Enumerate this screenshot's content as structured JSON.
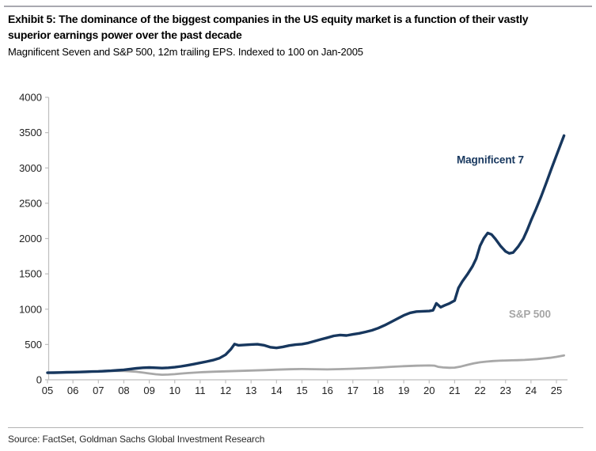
{
  "header": {
    "title_line1": "Exhibit 5: The dominance of the biggest companies in the US equity market is a function of their vastly",
    "title_line2": "superior earnings power over the past decade",
    "subtitle": "Magnificent Seven and S&P 500, 12m trailing EPS. Indexed to 100 on Jan-2005"
  },
  "footer": {
    "source": "Source: FactSet, Goldman Sachs Global Investment Research"
  },
  "colors": {
    "navy": "#17375E",
    "gray_line": "#A8A8A8",
    "axis": "#BFBFBF",
    "tick_label": "#212121"
  },
  "chart_data": {
    "type": "line",
    "title": "Magnificent Seven and S&P 500, 12m trailing EPS. Indexed to 100 on Jan-2005",
    "xlabel": "",
    "ylabel": "",
    "x_range": [
      2005,
      2025.4
    ],
    "ylim": [
      0,
      4000
    ],
    "grid": false,
    "legend_position": "inline-annotations",
    "x_tick_years": [
      2005,
      2006,
      2007,
      2008,
      2009,
      2010,
      2011,
      2012,
      2013,
      2014,
      2015,
      2016,
      2017,
      2018,
      2019,
      2020,
      2021,
      2022,
      2023,
      2024,
      2025
    ],
    "x_tick_labels": [
      "05",
      "06",
      "07",
      "08",
      "09",
      "10",
      "11",
      "12",
      "13",
      "14",
      "15",
      "16",
      "17",
      "18",
      "19",
      "20",
      "21",
      "22",
      "23",
      "24",
      "25"
    ],
    "y_tick_values": [
      0,
      500,
      1000,
      1500,
      2000,
      2500,
      3000,
      3500,
      4000
    ],
    "y_tick_labels": [
      "0",
      "500",
      "1000",
      "1500",
      "2000",
      "2500",
      "3000",
      "3500",
      "4000"
    ],
    "series": [
      {
        "name": "S&P 500",
        "color": "#A8A8A8",
        "line_width": 2.8,
        "points": [
          [
            2005.0,
            100
          ],
          [
            2005.5,
            105
          ],
          [
            2006.0,
            110
          ],
          [
            2006.5,
            116
          ],
          [
            2007.0,
            121
          ],
          [
            2007.5,
            126
          ],
          [
            2008.0,
            124
          ],
          [
            2008.2,
            121
          ],
          [
            2008.5,
            113
          ],
          [
            2008.75,
            102
          ],
          [
            2009.0,
            90
          ],
          [
            2009.25,
            78
          ],
          [
            2009.5,
            72
          ],
          [
            2009.75,
            74
          ],
          [
            2010.0,
            80
          ],
          [
            2010.25,
            88
          ],
          [
            2010.5,
            95
          ],
          [
            2010.75,
            101
          ],
          [
            2011.0,
            107
          ],
          [
            2011.5,
            114
          ],
          [
            2012.0,
            120
          ],
          [
            2012.5,
            126
          ],
          [
            2013.0,
            131
          ],
          [
            2013.5,
            137
          ],
          [
            2014.0,
            143
          ],
          [
            2014.5,
            149
          ],
          [
            2015.0,
            152
          ],
          [
            2015.5,
            150
          ],
          [
            2016.0,
            147
          ],
          [
            2016.5,
            151
          ],
          [
            2017.0,
            157
          ],
          [
            2017.5,
            164
          ],
          [
            2018.0,
            173
          ],
          [
            2018.5,
            184
          ],
          [
            2019.0,
            193
          ],
          [
            2019.5,
            199
          ],
          [
            2020.0,
            203
          ],
          [
            2020.2,
            200
          ],
          [
            2020.35,
            184
          ],
          [
            2020.55,
            175
          ],
          [
            2020.8,
            170
          ],
          [
            2021.0,
            173
          ],
          [
            2021.25,
            188
          ],
          [
            2021.5,
            212
          ],
          [
            2021.75,
            232
          ],
          [
            2022.0,
            248
          ],
          [
            2022.25,
            258
          ],
          [
            2022.5,
            265
          ],
          [
            2022.75,
            270
          ],
          [
            2023.0,
            273
          ],
          [
            2023.25,
            276
          ],
          [
            2023.5,
            278
          ],
          [
            2023.75,
            281
          ],
          [
            2024.0,
            287
          ],
          [
            2024.25,
            294
          ],
          [
            2024.5,
            302
          ],
          [
            2024.75,
            312
          ],
          [
            2025.0,
            325
          ],
          [
            2025.3,
            345
          ]
        ]
      },
      {
        "name": "Magnificent 7",
        "color": "#17375E",
        "line_width": 3.4,
        "points": [
          [
            2005.0,
            100
          ],
          [
            2005.25,
            101
          ],
          [
            2005.5,
            103
          ],
          [
            2005.75,
            106
          ],
          [
            2006.0,
            108
          ],
          [
            2006.25,
            110
          ],
          [
            2006.5,
            113
          ],
          [
            2006.75,
            116
          ],
          [
            2007.0,
            119
          ],
          [
            2007.25,
            123
          ],
          [
            2007.5,
            128
          ],
          [
            2007.75,
            134
          ],
          [
            2008.0,
            141
          ],
          [
            2008.25,
            152
          ],
          [
            2008.5,
            163
          ],
          [
            2008.75,
            170
          ],
          [
            2009.0,
            174
          ],
          [
            2009.25,
            170
          ],
          [
            2009.5,
            166
          ],
          [
            2009.75,
            170
          ],
          [
            2010.0,
            178
          ],
          [
            2010.25,
            190
          ],
          [
            2010.5,
            205
          ],
          [
            2010.75,
            222
          ],
          [
            2011.0,
            240
          ],
          [
            2011.25,
            258
          ],
          [
            2011.5,
            278
          ],
          [
            2011.75,
            305
          ],
          [
            2012.0,
            355
          ],
          [
            2012.2,
            430
          ],
          [
            2012.35,
            505
          ],
          [
            2012.5,
            488
          ],
          [
            2012.75,
            494
          ],
          [
            2013.0,
            500
          ],
          [
            2013.25,
            503
          ],
          [
            2013.5,
            490
          ],
          [
            2013.75,
            462
          ],
          [
            2014.0,
            452
          ],
          [
            2014.25,
            466
          ],
          [
            2014.5,
            485
          ],
          [
            2014.75,
            498
          ],
          [
            2015.0,
            505
          ],
          [
            2015.25,
            522
          ],
          [
            2015.5,
            548
          ],
          [
            2015.75,
            572
          ],
          [
            2016.0,
            596
          ],
          [
            2016.25,
            622
          ],
          [
            2016.5,
            634
          ],
          [
            2016.75,
            628
          ],
          [
            2017.0,
            643
          ],
          [
            2017.25,
            658
          ],
          [
            2017.5,
            678
          ],
          [
            2017.75,
            700
          ],
          [
            2018.0,
            732
          ],
          [
            2018.25,
            772
          ],
          [
            2018.5,
            818
          ],
          [
            2018.75,
            866
          ],
          [
            2019.0,
            912
          ],
          [
            2019.25,
            948
          ],
          [
            2019.5,
            966
          ],
          [
            2019.75,
            970
          ],
          [
            2020.0,
            974
          ],
          [
            2020.15,
            984
          ],
          [
            2020.28,
            1082
          ],
          [
            2020.45,
            1028
          ],
          [
            2020.6,
            1052
          ],
          [
            2020.8,
            1082
          ],
          [
            2021.0,
            1122
          ],
          [
            2021.15,
            1300
          ],
          [
            2021.3,
            1390
          ],
          [
            2021.5,
            1492
          ],
          [
            2021.7,
            1606
          ],
          [
            2021.85,
            1716
          ],
          [
            2022.0,
            1896
          ],
          [
            2022.15,
            2006
          ],
          [
            2022.3,
            2078
          ],
          [
            2022.45,
            2058
          ],
          [
            2022.6,
            1996
          ],
          [
            2022.8,
            1896
          ],
          [
            2023.0,
            1818
          ],
          [
            2023.15,
            1790
          ],
          [
            2023.3,
            1802
          ],
          [
            2023.5,
            1888
          ],
          [
            2023.7,
            1998
          ],
          [
            2023.85,
            2118
          ],
          [
            2024.0,
            2256
          ],
          [
            2024.2,
            2420
          ],
          [
            2024.4,
            2596
          ],
          [
            2024.6,
            2786
          ],
          [
            2024.8,
            2986
          ],
          [
            2025.0,
            3176
          ],
          [
            2025.15,
            3318
          ],
          [
            2025.3,
            3458
          ]
        ]
      }
    ],
    "annotations": [
      {
        "text": "Magnificent 7",
        "color": "#17375E",
        "bold": true,
        "x": 2021.08,
        "y": 3120
      },
      {
        "text": "S&P 500",
        "color": "#A6A6A6",
        "bold": true,
        "x": 2023.13,
        "y": 935
      }
    ]
  }
}
